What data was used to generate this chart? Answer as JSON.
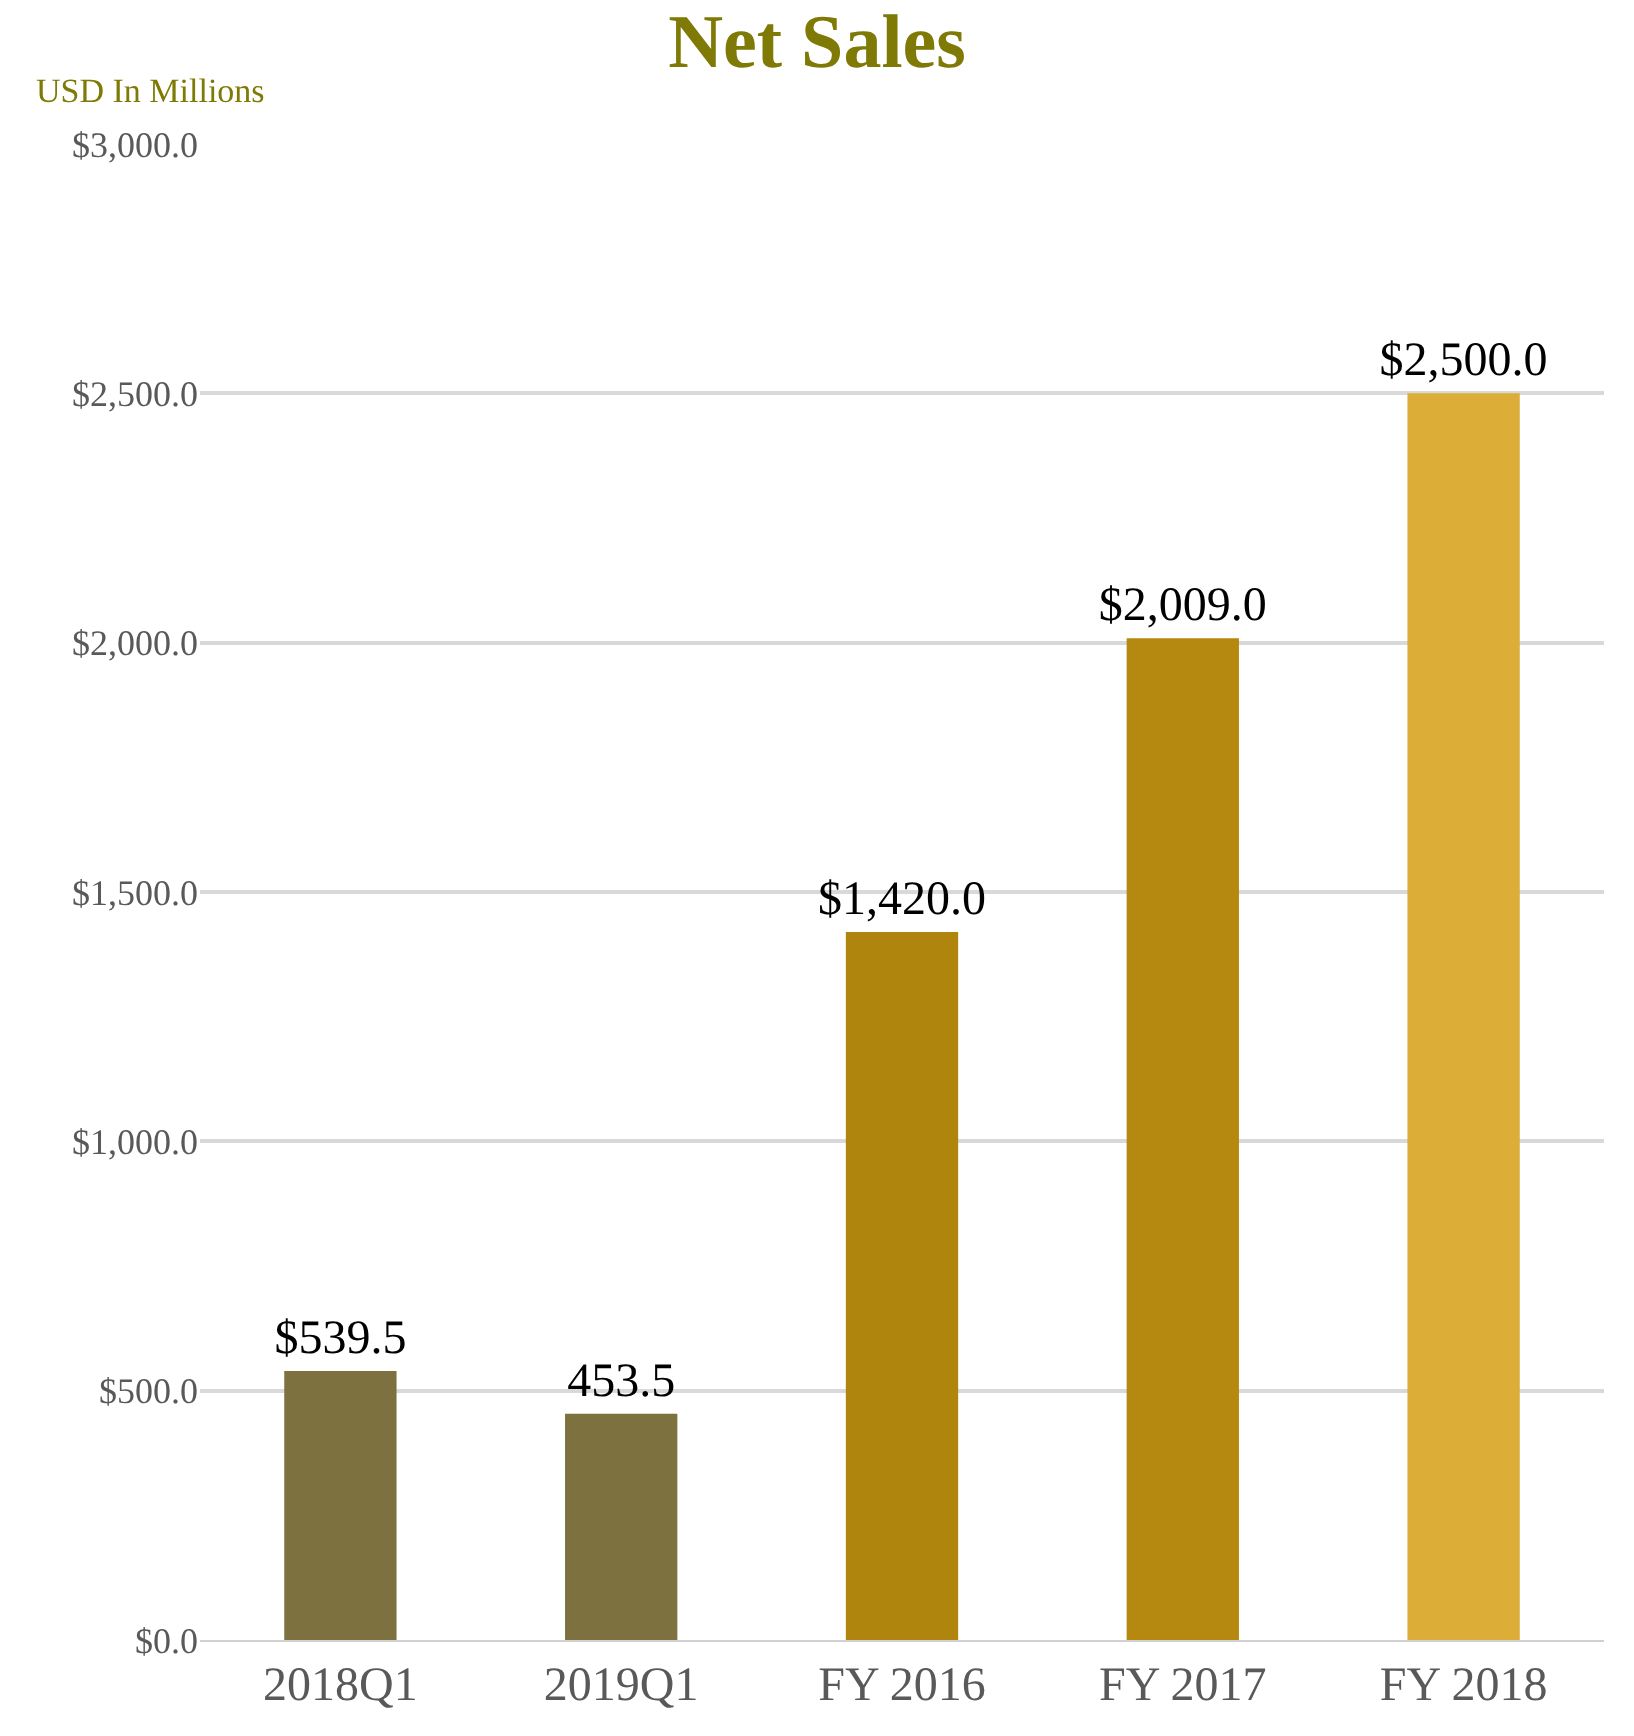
{
  "chart_data": {
    "type": "bar",
    "title": "Net Sales",
    "ylabel": "USD In Millions",
    "categories": [
      "2018Q1",
      "2019Q1",
      "FY 2016",
      "FY 2017",
      "FY 2018"
    ],
    "values": [
      539.5,
      453.5,
      1420.0,
      2009.0,
      2500.0
    ],
    "colors": [
      "#7c713f",
      "#7c713f",
      "#b0850e",
      "#b5890f",
      "#dcae38"
    ],
    "value_labels": [
      "$539.5",
      "453.5",
      "$1,420.0",
      "$2,009.0",
      "$2,500.0"
    ],
    "ylim": [
      0,
      3000
    ],
    "yticks": [
      {
        "value": 0,
        "label": "$0.0"
      },
      {
        "value": 500,
        "label": "$500.0"
      },
      {
        "value": 1000,
        "label": "$1,000.0"
      },
      {
        "value": 1500,
        "label": "$1,500.0"
      },
      {
        "value": 2000,
        "label": "$2,000.0"
      },
      {
        "value": 2500,
        "label": "$2,500.0"
      },
      {
        "value": 3000,
        "label": "$3,000.0"
      }
    ],
    "grid": "y"
  }
}
